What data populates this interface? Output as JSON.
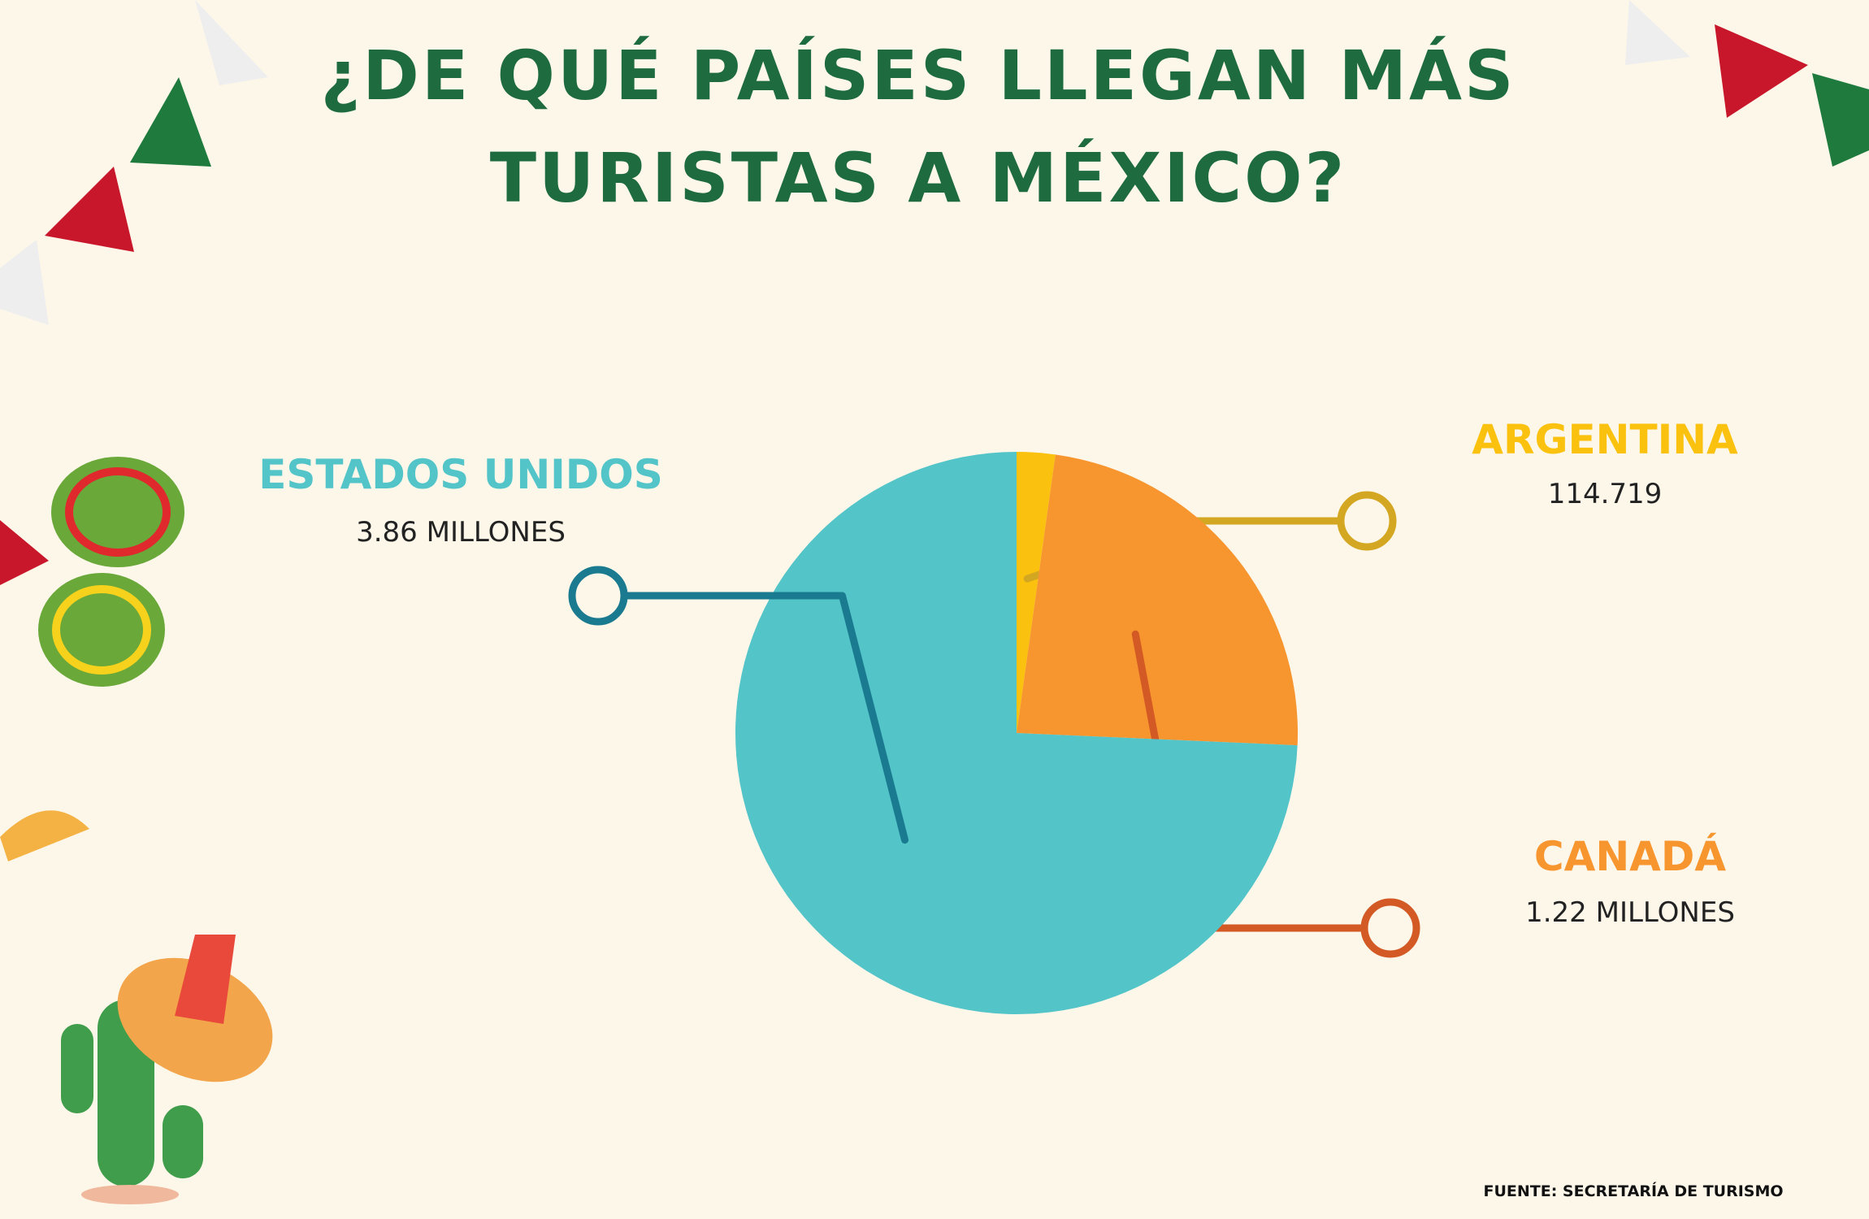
{
  "chart_data": {
    "type": "pie",
    "title": "¿DE QUÉ PAÍSES LLEGAN MÁS TURISTAS A MÉXICO?",
    "categories": [
      "ARGENTINA",
      "CANADÁ",
      "ESTADOS UNIDOS"
    ],
    "values": [
      114719,
      1220000,
      3860000
    ],
    "value_labels": [
      "114.719",
      "1.22 MILLONES",
      "3.86 MILLONES"
    ],
    "colors": [
      "#fac10f",
      "#f7952f",
      "#53c4c8"
    ],
    "connector_colors": [
      "#d4a722",
      "#d35a25",
      "#1a7a8f"
    ],
    "source": "FUENTE: SECRETARÍA DE TURISMO"
  }
}
